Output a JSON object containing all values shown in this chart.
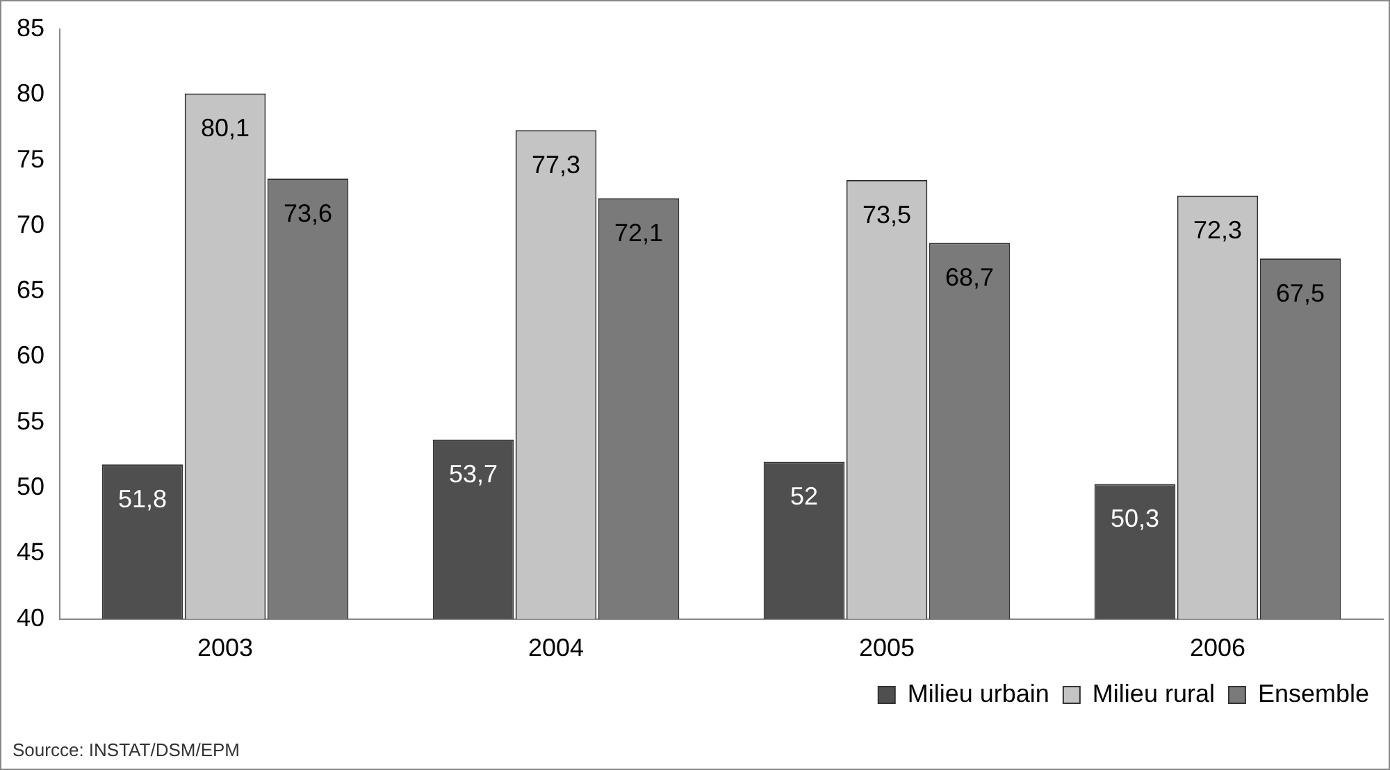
{
  "chart_data": {
    "type": "bar",
    "categories": [
      "2003",
      "2004",
      "2005",
      "2006"
    ],
    "series": [
      {
        "name": "Milieu urbain",
        "color": "#4f4f4f",
        "values": [
          51.8,
          53.7,
          52,
          50.3
        ],
        "value_labels": [
          "51,8",
          "53,7",
          "52",
          "50,3"
        ]
      },
      {
        "name": "Milieu rural",
        "color": "#c4c4c4",
        "values": [
          80.1,
          77.3,
          73.5,
          72.3
        ],
        "value_labels": [
          "80,1",
          "77,3",
          "73,5",
          "72,3"
        ]
      },
      {
        "name": "Ensemble",
        "color": "#7a7a7a",
        "values": [
          73.6,
          72.1,
          68.7,
          67.5
        ],
        "value_labels": [
          "73,6",
          "72,1",
          "68,7",
          "67,5"
        ]
      }
    ],
    "ylim": [
      40,
      85
    ],
    "yticks": [
      40,
      45,
      50,
      55,
      60,
      65,
      70,
      75,
      80,
      85
    ],
    "grid": false,
    "legend": "bottom right",
    "annotations": [
      "Sourcce: INSTAT/DSM/EPM"
    ]
  }
}
